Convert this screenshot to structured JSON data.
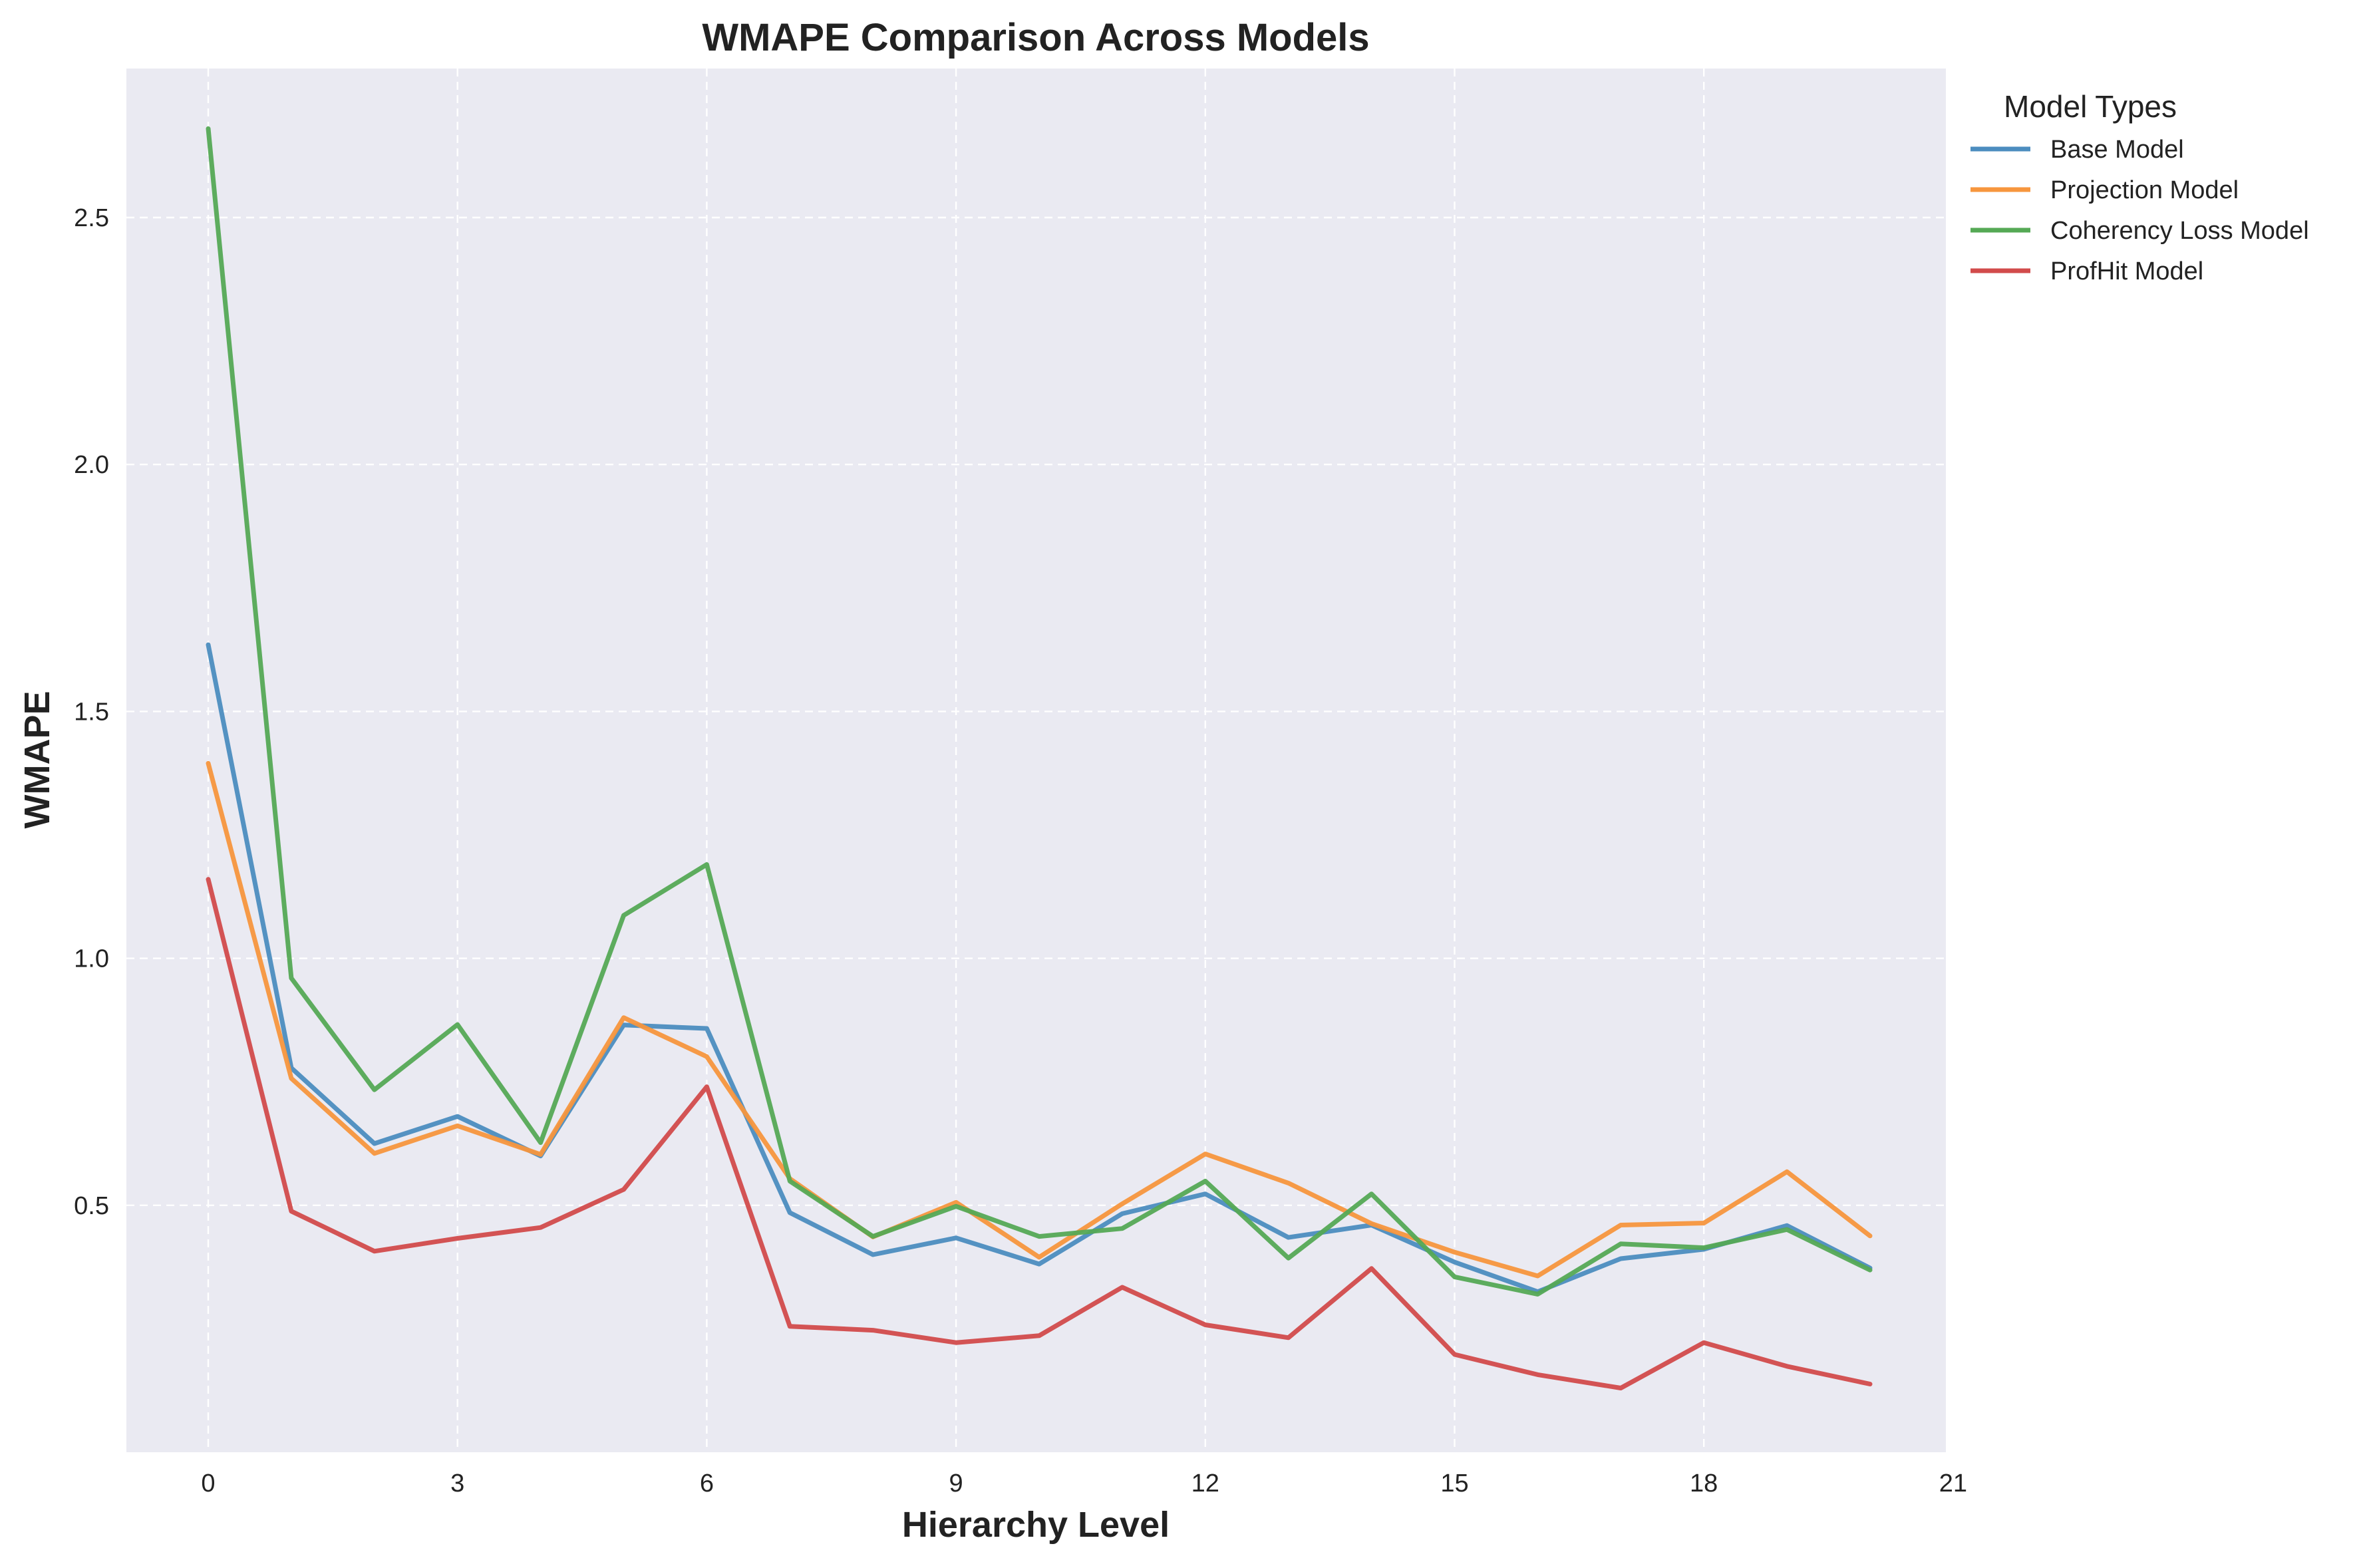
{
  "chart_data": {
    "type": "line",
    "title": "WMAPE Comparison Across Models",
    "xlabel": "Hierarchy Level",
    "ylabel": "WMAPE",
    "xlim": [
      -1,
      21
    ],
    "ylim": [
      0.0,
      2.8
    ],
    "xticks": [
      0,
      3,
      6,
      9,
      12,
      15,
      18,
      21
    ],
    "xtick_labels": [
      "0",
      "3",
      "6",
      "9",
      "12",
      "15",
      "18",
      "21"
    ],
    "yticks": [
      0.5,
      1.0,
      1.5,
      2.0,
      2.5
    ],
    "ytick_labels": [
      "0.5",
      "1.0",
      "1.5",
      "2.0",
      "2.5"
    ],
    "grid": true,
    "legend": {
      "title": "Model Types",
      "position": "outside-right-top"
    },
    "colors": {
      "background": "#eaeaf2",
      "grid": "#ffffff"
    },
    "x": [
      0,
      1,
      2,
      3,
      4,
      5,
      6,
      7,
      8,
      9,
      10,
      11,
      12,
      13,
      14,
      15,
      16,
      17,
      18,
      19,
      20
    ],
    "series": [
      {
        "name": "Base Model",
        "color": "#4c8dbf",
        "values": [
          1.635,
          0.778,
          0.625,
          0.68,
          0.6,
          0.865,
          0.858,
          0.485,
          0.4,
          0.434,
          0.381,
          0.483,
          0.523,
          0.435,
          0.46,
          0.385,
          0.325,
          0.392,
          0.411,
          0.459,
          0.373
        ]
      },
      {
        "name": "Projection Model",
        "color": "#f7963d",
        "values": [
          1.395,
          0.757,
          0.605,
          0.661,
          0.603,
          0.88,
          0.801,
          0.554,
          0.436,
          0.506,
          0.395,
          0.503,
          0.604,
          0.545,
          0.463,
          0.405,
          0.357,
          0.46,
          0.464,
          0.568,
          0.438
        ]
      },
      {
        "name": "Coherency Loss Model",
        "color": "#55a955",
        "values": [
          2.68,
          0.96,
          0.734,
          0.866,
          0.627,
          1.087,
          1.19,
          0.549,
          0.437,
          0.498,
          0.437,
          0.453,
          0.549,
          0.393,
          0.523,
          0.355,
          0.32,
          0.422,
          0.414,
          0.451,
          0.369
        ]
      },
      {
        "name": "ProfHit Model",
        "color": "#d24b4b",
        "values": [
          1.16,
          0.488,
          0.407,
          0.433,
          0.455,
          0.532,
          0.74,
          0.255,
          0.247,
          0.222,
          0.236,
          0.334,
          0.258,
          0.232,
          0.372,
          0.198,
          0.157,
          0.13,
          0.222,
          0.174,
          0.138
        ]
      }
    ]
  }
}
